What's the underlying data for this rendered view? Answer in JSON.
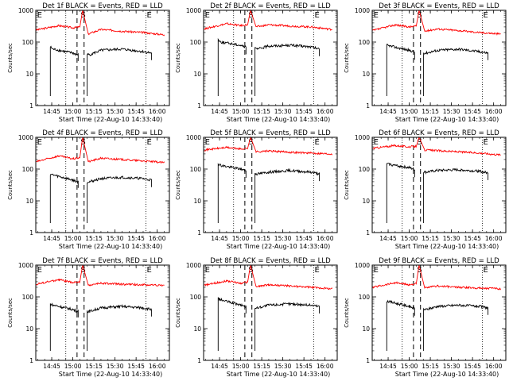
{
  "figure": {
    "xlabel": "Start Time (22-Aug-10 14:33:40)",
    "ylabel": "Counts/sec",
    "series_colors": {
      "events": "#000000",
      "lld": "#ff0000"
    },
    "flag_labels": {
      "eclipse": "E",
      "saa": "S"
    }
  },
  "chart_data": [
    {
      "type": "line",
      "title": "Det 1f BLACK = Events, RED = LLD",
      "y_scale": "log",
      "ylim": [
        1,
        1000
      ],
      "y_ticks": [
        "1",
        "10",
        "100",
        "1000"
      ],
      "x_ticks": [
        "14:45",
        "15:00",
        "15:15",
        "15:30",
        "15:45",
        "16:00"
      ],
      "flags": [
        {
          "label": "E",
          "at": "14:34"
        },
        {
          "label": "S",
          "at": "15:05"
        },
        {
          "label": "E",
          "at": "15:52"
        }
      ],
      "series": [
        {
          "color": "red",
          "x": [
            "14:34",
            "14:50",
            "15:00",
            "15:05",
            "15:07",
            "15:11",
            "15:20",
            "15:35",
            "15:50",
            "16:05"
          ],
          "y": [
            240,
            330,
            280,
            300,
            1000,
            180,
            250,
            220,
            200,
            170
          ]
        },
        {
          "color": "black",
          "x": [
            "14:44",
            "14:46",
            "15:00",
            "15:03",
            "15:12",
            "15:20",
            "15:35",
            "15:50",
            "15:56"
          ],
          "y": [
            70,
            60,
            45,
            40,
            40,
            55,
            60,
            50,
            45
          ]
        }
      ]
    },
    {
      "type": "line",
      "title": "Det 2f BLACK = Events, RED = LLD",
      "y_scale": "log",
      "ylim": [
        1,
        1000
      ],
      "y_ticks": [
        "1",
        "10",
        "100",
        "1000"
      ],
      "x_ticks": [
        "14:45",
        "15:00",
        "15:15",
        "15:30",
        "15:45",
        "16:00"
      ],
      "flags": [
        {
          "label": "E",
          "at": "14:34"
        },
        {
          "label": "S",
          "at": "15:05"
        },
        {
          "label": "E",
          "at": "15:52"
        }
      ],
      "series": [
        {
          "color": "red",
          "x": [
            "14:34",
            "14:50",
            "15:00",
            "15:05",
            "15:07",
            "15:11",
            "15:20",
            "15:35",
            "15:50",
            "16:05"
          ],
          "y": [
            260,
            380,
            330,
            350,
            1000,
            300,
            350,
            320,
            300,
            250
          ]
        },
        {
          "color": "black",
          "x": [
            "14:44",
            "14:46",
            "15:00",
            "15:03",
            "15:12",
            "15:20",
            "15:35",
            "15:50",
            "15:56"
          ],
          "y": [
            120,
            100,
            80,
            70,
            60,
            75,
            80,
            70,
            60
          ]
        }
      ]
    },
    {
      "type": "line",
      "title": "Det 3f BLACK = Events, RED = LLD",
      "y_scale": "log",
      "ylim": [
        1,
        1000
      ],
      "y_ticks": [
        "1",
        "10",
        "100",
        "1000"
      ],
      "x_ticks": [
        "14:45",
        "15:00",
        "15:15",
        "15:30",
        "15:45",
        "16:00"
      ],
      "flags": [
        {
          "label": "E",
          "at": "14:34"
        },
        {
          "label": "S",
          "at": "15:05"
        },
        {
          "label": "E",
          "at": "15:52"
        }
      ],
      "series": [
        {
          "color": "red",
          "x": [
            "14:34",
            "14:50",
            "15:00",
            "15:05",
            "15:07",
            "15:11",
            "15:20",
            "15:35",
            "15:50",
            "16:05"
          ],
          "y": [
            230,
            350,
            300,
            320,
            1000,
            220,
            260,
            230,
            200,
            180
          ]
        },
        {
          "color": "black",
          "x": [
            "14:44",
            "14:46",
            "15:00",
            "15:03",
            "15:12",
            "15:20",
            "15:35",
            "15:50",
            "15:56"
          ],
          "y": [
            80,
            75,
            55,
            50,
            45,
            55,
            60,
            50,
            45
          ]
        }
      ]
    },
    {
      "type": "line",
      "title": "Det 4f BLACK = Events, RED = LLD",
      "y_scale": "log",
      "ylim": [
        1,
        1000
      ],
      "y_ticks": [
        "1",
        "10",
        "100",
        "1000"
      ],
      "x_ticks": [
        "14:45",
        "15:00",
        "15:15",
        "15:30",
        "15:45",
        "16:00"
      ],
      "flags": [
        {
          "label": "E",
          "at": "14:34"
        },
        {
          "label": "S",
          "at": "15:05"
        },
        {
          "label": "E",
          "at": "15:52"
        }
      ],
      "series": [
        {
          "color": "red",
          "x": [
            "14:34",
            "14:50",
            "15:00",
            "15:05",
            "15:07",
            "15:11",
            "15:20",
            "15:35",
            "15:50",
            "16:05"
          ],
          "y": [
            170,
            260,
            210,
            230,
            1000,
            170,
            220,
            200,
            180,
            160
          ]
        },
        {
          "color": "black",
          "x": [
            "14:44",
            "14:46",
            "15:00",
            "15:03",
            "15:12",
            "15:20",
            "15:35",
            "15:50",
            "15:56"
          ],
          "y": [
            70,
            65,
            45,
            40,
            40,
            50,
            55,
            50,
            45
          ]
        }
      ]
    },
    {
      "type": "line",
      "title": "Det 5f BLACK = Events, RED = LLD",
      "y_scale": "log",
      "ylim": [
        1,
        1000
      ],
      "y_ticks": [
        "1",
        "10",
        "100",
        "1000"
      ],
      "x_ticks": [
        "14:45",
        "15:00",
        "15:15",
        "15:30",
        "15:45",
        "16:00"
      ],
      "flags": [
        {
          "label": "E",
          "at": "14:34"
        },
        {
          "label": "S",
          "at": "15:05"
        },
        {
          "label": "E",
          "at": "15:52"
        }
      ],
      "series": [
        {
          "color": "red",
          "x": [
            "14:34",
            "14:50",
            "15:00",
            "15:05",
            "15:07",
            "15:11",
            "15:20",
            "15:35",
            "15:50",
            "16:05"
          ],
          "y": [
            400,
            480,
            430,
            450,
            1000,
            350,
            370,
            340,
            320,
            300
          ]
        },
        {
          "color": "black",
          "x": [
            "14:44",
            "14:46",
            "15:00",
            "15:03",
            "15:12",
            "15:20",
            "15:35",
            "15:50",
            "15:56"
          ],
          "y": [
            150,
            130,
            100,
            90,
            70,
            80,
            90,
            80,
            70
          ]
        }
      ]
    },
    {
      "type": "line",
      "title": "Det 6f BLACK = Events, RED = LLD",
      "y_scale": "log",
      "ylim": [
        1,
        1000
      ],
      "y_ticks": [
        "1",
        "10",
        "100",
        "1000"
      ],
      "x_ticks": [
        "14:45",
        "15:00",
        "15:15",
        "15:30",
        "15:45",
        "16:00"
      ],
      "flags": [
        {
          "label": "E",
          "at": "14:34"
        },
        {
          "label": "S",
          "at": "15:05"
        },
        {
          "label": "E",
          "at": "15:52"
        }
      ],
      "series": [
        {
          "color": "red",
          "x": [
            "14:34",
            "14:50",
            "15:00",
            "15:05",
            "15:07",
            "15:11",
            "15:20",
            "15:35",
            "15:50",
            "16:05"
          ],
          "y": [
            450,
            550,
            500,
            520,
            1000,
            400,
            380,
            350,
            320,
            280
          ]
        },
        {
          "color": "black",
          "x": [
            "14:44",
            "14:46",
            "15:00",
            "15:03",
            "15:12",
            "15:20",
            "15:35",
            "15:50",
            "15:56"
          ],
          "y": [
            150,
            140,
            110,
            100,
            80,
            90,
            95,
            85,
            75
          ]
        }
      ]
    },
    {
      "type": "line",
      "title": "Det 7f BLACK = Events, RED = LLD",
      "y_scale": "log",
      "ylim": [
        1,
        1000
      ],
      "y_ticks": [
        "1",
        "10",
        "100",
        "1000"
      ],
      "x_ticks": [
        "14:45",
        "15:00",
        "15:15",
        "15:30",
        "15:45",
        "16:00"
      ],
      "flags": [
        {
          "label": "E",
          "at": "14:34"
        },
        {
          "label": "S",
          "at": "15:05"
        },
        {
          "label": "E",
          "at": "15:52"
        }
      ],
      "series": [
        {
          "color": "red",
          "x": [
            "14:34",
            "14:50",
            "15:00",
            "15:05",
            "15:07",
            "15:11",
            "15:20",
            "15:35",
            "15:50",
            "16:05"
          ],
          "y": [
            250,
            350,
            280,
            300,
            1000,
            230,
            270,
            250,
            240,
            230
          ]
        },
        {
          "color": "black",
          "x": [
            "14:44",
            "14:46",
            "15:00",
            "15:03",
            "15:12",
            "15:20",
            "15:35",
            "15:50",
            "15:56"
          ],
          "y": [
            60,
            55,
            40,
            35,
            35,
            45,
            50,
            45,
            40
          ]
        }
      ]
    },
    {
      "type": "line",
      "title": "Det 8f BLACK = Events, RED = LLD",
      "y_scale": "log",
      "ylim": [
        1,
        1000
      ],
      "y_ticks": [
        "1",
        "10",
        "100",
        "1000"
      ],
      "x_ticks": [
        "14:45",
        "15:00",
        "15:15",
        "15:30",
        "15:45",
        "16:00"
      ],
      "flags": [
        {
          "label": "E",
          "at": "14:34"
        },
        {
          "label": "S",
          "at": "15:05"
        },
        {
          "label": "E",
          "at": "15:52"
        }
      ],
      "series": [
        {
          "color": "red",
          "x": [
            "14:34",
            "14:50",
            "15:00",
            "15:05",
            "15:07",
            "15:11",
            "15:20",
            "15:35",
            "15:50",
            "16:05"
          ],
          "y": [
            230,
            320,
            270,
            290,
            1000,
            210,
            240,
            220,
            200,
            180
          ]
        },
        {
          "color": "black",
          "x": [
            "14:44",
            "14:46",
            "15:00",
            "15:03",
            "15:12",
            "15:20",
            "15:35",
            "15:50",
            "15:56"
          ],
          "y": [
            90,
            80,
            55,
            50,
            45,
            55,
            60,
            55,
            50
          ]
        }
      ]
    },
    {
      "type": "line",
      "title": "Det 9f BLACK = Events, RED = LLD",
      "y_scale": "log",
      "ylim": [
        1,
        1000
      ],
      "y_ticks": [
        "1",
        "10",
        "100",
        "1000"
      ],
      "x_ticks": [
        "14:45",
        "15:00",
        "15:15",
        "15:30",
        "15:45",
        "16:00"
      ],
      "flags": [
        {
          "label": "E",
          "at": "14:34"
        },
        {
          "label": "S",
          "at": "15:05"
        },
        {
          "label": "E",
          "at": "15:52"
        }
      ],
      "series": [
        {
          "color": "red",
          "x": [
            "14:34",
            "14:50",
            "15:00",
            "15:05",
            "15:07",
            "15:11",
            "15:20",
            "15:35",
            "15:50",
            "16:05"
          ],
          "y": [
            200,
            280,
            240,
            260,
            1000,
            190,
            220,
            200,
            190,
            180
          ]
        },
        {
          "color": "black",
          "x": [
            "14:44",
            "14:46",
            "15:00",
            "15:03",
            "15:12",
            "15:20",
            "15:35",
            "15:50",
            "15:56"
          ],
          "y": [
            75,
            70,
            50,
            45,
            40,
            50,
            55,
            50,
            45
          ]
        }
      ]
    }
  ]
}
